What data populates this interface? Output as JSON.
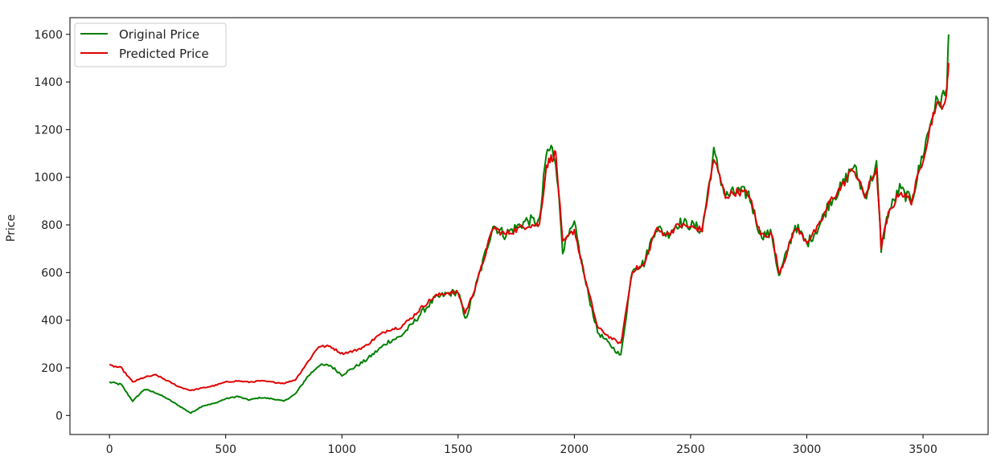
{
  "chart_data": {
    "type": "line",
    "title": "",
    "xlabel": "",
    "ylabel": "Price",
    "xlim": [
      -170,
      3780
    ],
    "ylim": [
      -80,
      1670
    ],
    "xticks": [
      0,
      500,
      1000,
      1500,
      2000,
      2500,
      3000,
      3500
    ],
    "yticks": [
      0,
      200,
      400,
      600,
      800,
      1000,
      1200,
      1400,
      1600
    ],
    "legend_position": "top-left",
    "grid": false,
    "series": [
      {
        "name": "Original Price",
        "color": "#008000",
        "x": [
          0,
          50,
          100,
          150,
          200,
          250,
          300,
          350,
          400,
          450,
          500,
          550,
          600,
          650,
          700,
          750,
          800,
          850,
          900,
          950,
          1000,
          1050,
          1100,
          1150,
          1200,
          1250,
          1300,
          1350,
          1400,
          1450,
          1500,
          1530,
          1560,
          1600,
          1650,
          1700,
          1750,
          1800,
          1850,
          1880,
          1900,
          1920,
          1950,
          2000,
          2050,
          2100,
          2150,
          2200,
          2250,
          2300,
          2350,
          2400,
          2450,
          2500,
          2550,
          2600,
          2650,
          2700,
          2750,
          2800,
          2850,
          2880,
          2900,
          2950,
          3000,
          3050,
          3100,
          3150,
          3200,
          3250,
          3300,
          3320,
          3350,
          3400,
          3450,
          3500,
          3550,
          3600,
          3610
        ],
        "values": [
          140,
          130,
          60,
          110,
          95,
          70,
          40,
          10,
          40,
          50,
          70,
          80,
          65,
          75,
          70,
          60,
          90,
          160,
          210,
          210,
          170,
          200,
          230,
          270,
          310,
          330,
          380,
          440,
          490,
          510,
          520,
          400,
          490,
          620,
          800,
          760,
          790,
          820,
          810,
          1100,
          1120,
          1080,
          700,
          800,
          550,
          350,
          300,
          250,
          620,
          640,
          790,
          760,
          810,
          800,
          780,
          1100,
          920,
          940,
          930,
          760,
          760,
          580,
          640,
          800,
          720,
          790,
          900,
          960,
          1050,
          920,
          1050,
          700,
          850,
          950,
          900,
          1100,
          1300,
          1350,
          1600
        ]
      },
      {
        "name": "Predicted Price",
        "color": "#e00000",
        "x": [
          0,
          50,
          100,
          150,
          200,
          250,
          300,
          350,
          400,
          450,
          500,
          550,
          600,
          650,
          700,
          750,
          800,
          850,
          900,
          950,
          1000,
          1050,
          1100,
          1150,
          1200,
          1250,
          1300,
          1350,
          1400,
          1450,
          1500,
          1530,
          1560,
          1600,
          1650,
          1700,
          1750,
          1800,
          1850,
          1880,
          1900,
          1920,
          1950,
          2000,
          2050,
          2100,
          2150,
          2200,
          2250,
          2300,
          2350,
          2400,
          2450,
          2500,
          2550,
          2600,
          2650,
          2700,
          2750,
          2800,
          2850,
          2880,
          2900,
          2950,
          3000,
          3050,
          3100,
          3150,
          3200,
          3250,
          3300,
          3320,
          3350,
          3400,
          3450,
          3500,
          3550,
          3600,
          3610
        ],
        "values": [
          210,
          200,
          140,
          160,
          170,
          145,
          120,
          105,
          115,
          125,
          140,
          145,
          140,
          145,
          140,
          135,
          150,
          220,
          290,
          290,
          260,
          270,
          290,
          330,
          360,
          370,
          410,
          460,
          500,
          515,
          515,
          430,
          500,
          620,
          790,
          760,
          780,
          800,
          800,
          1050,
          1080,
          1100,
          720,
          780,
          560,
          370,
          330,
          300,
          610,
          630,
          780,
          760,
          800,
          790,
          780,
          1080,
          920,
          940,
          930,
          760,
          760,
          600,
          640,
          790,
          730,
          790,
          900,
          960,
          1040,
          920,
          1040,
          710,
          840,
          940,
          900,
          1080,
          1290,
          1320,
          1480
        ]
      }
    ]
  }
}
